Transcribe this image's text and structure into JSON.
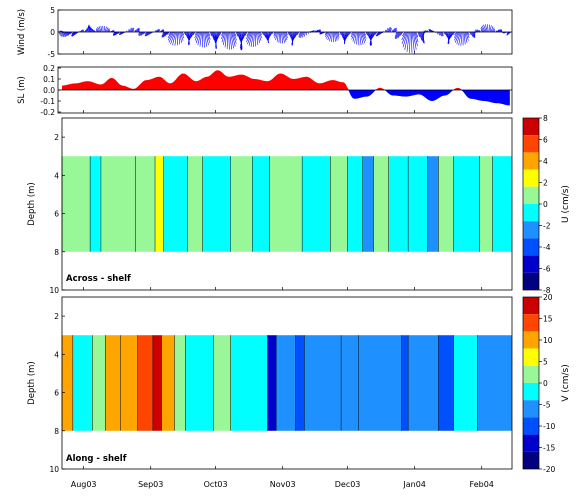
{
  "chart_data": [
    {
      "type": "quiver",
      "ylabel": "Wind (m/s)",
      "ylim": [
        -5,
        5
      ],
      "yticks": [
        "5",
        "0",
        "-5"
      ],
      "x_range": [
        "2003-07-22",
        "2004-02-15"
      ],
      "series": [
        {
          "values": [
            {
              "x": "2003-07-22",
              "u": -2.0,
              "v": 1.2
            },
            {
              "x": "2003-07-27",
              "u": -2.5,
              "v": -2.5
            },
            {
              "x": "2003-08-01",
              "u": 1.5,
              "v": 1.8
            },
            {
              "x": "2003-08-07",
              "u": -2.2,
              "v": 1.5
            },
            {
              "x": "2003-08-13",
              "u": 2.0,
              "v": 1.3
            },
            {
              "x": "2003-08-18",
              "u": -2.8,
              "v": -2.0
            },
            {
              "x": "2003-08-24",
              "u": 2.4,
              "v": 2.5
            },
            {
              "x": "2003-08-30",
              "u": -3.0,
              "v": -2.5
            },
            {
              "x": "2003-09-05",
              "u": 2.2,
              "v": 2.0
            },
            {
              "x": "2003-09-10",
              "u": -3.5,
              "v": -3.0
            },
            {
              "x": "2003-09-16",
              "u": 2.5,
              "v": -3.2
            },
            {
              "x": "2003-09-22",
              "u": -3.0,
              "v": -2.8
            },
            {
              "x": "2003-09-28",
              "u": 2.8,
              "v": -4.2
            },
            {
              "x": "2003-10-04",
              "u": -2.5,
              "v": -3.5
            },
            {
              "x": "2003-10-10",
              "u": 3.0,
              "v": -4.5
            },
            {
              "x": "2003-10-16",
              "u": -3.2,
              "v": -3.8
            },
            {
              "x": "2003-10-22",
              "u": 2.5,
              "v": -3.0
            },
            {
              "x": "2003-10-28",
              "u": -2.0,
              "v": -2.0
            },
            {
              "x": "2003-11-03",
              "u": 2.2,
              "v": -3.2
            },
            {
              "x": "2003-11-09",
              "u": -3.0,
              "v": -3.0
            },
            {
              "x": "2003-11-15",
              "u": 3.0,
              "v": 1.5
            },
            {
              "x": "2003-11-21",
              "u": -2.5,
              "v": -1.5
            },
            {
              "x": "2003-11-27",
              "u": 2.0,
              "v": -3.0
            },
            {
              "x": "2003-12-03",
              "u": -2.5,
              "v": -2.5
            },
            {
              "x": "2003-12-09",
              "u": 2.8,
              "v": -3.5
            },
            {
              "x": "2003-12-15",
              "u": -3.2,
              "v": -2.8
            },
            {
              "x": "2003-12-21",
              "u": 2.5,
              "v": 3.0
            },
            {
              "x": "2003-12-27",
              "u": -3.5,
              "v": -4.0
            },
            {
              "x": "2004-01-02",
              "u": 3.0,
              "v": -5.5
            },
            {
              "x": "2004-01-08",
              "u": -2.8,
              "v": 2.0
            },
            {
              "x": "2004-01-14",
              "u": 2.5,
              "v": -2.5
            },
            {
              "x": "2004-01-20",
              "u": -3.0,
              "v": -3.0
            },
            {
              "x": "2004-01-26",
              "u": 2.2,
              "v": -3.2
            },
            {
              "x": "2004-02-01",
              "u": -2.5,
              "v": 2.0
            },
            {
              "x": "2004-02-07",
              "u": 2.0,
              "v": 1.5
            },
            {
              "x": "2004-02-13",
              "u": -1.5,
              "v": -1.0
            }
          ]
        }
      ]
    },
    {
      "type": "area",
      "ylabel": "SL (m)",
      "ylim": [
        -0.2,
        0.2
      ],
      "yticks": [
        "0.2",
        "0.1",
        "0.0",
        "-0.1",
        "-0.2"
      ],
      "colors": {
        "positive": "#ff0000",
        "negative": "#0000ff"
      },
      "x": [
        "2003-07-22",
        "2003-07-28",
        "2003-08-03",
        "2003-08-09",
        "2003-08-14",
        "2003-08-19",
        "2003-08-24",
        "2003-08-30",
        "2003-09-05",
        "2003-09-10",
        "2003-09-16",
        "2003-09-22",
        "2003-09-27",
        "2003-10-02",
        "2003-10-07",
        "2003-10-13",
        "2003-10-19",
        "2003-10-25",
        "2003-10-31",
        "2003-11-06",
        "2003-11-12",
        "2003-11-18",
        "2003-11-24",
        "2003-11-29",
        "2003-12-04",
        "2003-12-10",
        "2003-12-16",
        "2003-12-22",
        "2003-12-28",
        "2004-01-03",
        "2004-01-09",
        "2004-01-15",
        "2004-01-21",
        "2004-01-27",
        "2004-02-02",
        "2004-02-08",
        "2004-02-14"
      ],
      "values": [
        0.04,
        0.06,
        0.08,
        0.05,
        0.11,
        0.04,
        0.01,
        0.09,
        0.12,
        0.06,
        0.15,
        0.08,
        0.12,
        0.18,
        0.12,
        0.14,
        0.1,
        0.08,
        0.15,
        0.1,
        0.12,
        0.06,
        0.09,
        0.07,
        -0.08,
        -0.06,
        0.02,
        -0.05,
        -0.06,
        -0.04,
        -0.1,
        -0.05,
        0.02,
        -0.08,
        -0.1,
        -0.12,
        -0.14
      ]
    },
    {
      "type": "heatmap",
      "ylabel": "Depth (m)",
      "ylim": [
        10,
        1
      ],
      "yticks": [
        "2",
        "4",
        "6",
        "8",
        "10"
      ],
      "annotation": "Across - shelf",
      "colorbar": {
        "label": "U (cm/s)",
        "ticks": [
          "8",
          "6",
          "4",
          "2",
          "0",
          "-2",
          "-4",
          "-6",
          "-8"
        ],
        "range": [
          -8,
          8
        ],
        "colors": [
          "#000080",
          "#0000cd",
          "#0050ff",
          "#1e90ff",
          "#00ffff",
          "#98f898",
          "#ffff00",
          "#ffa500",
          "#ff4500",
          "#cc0000"
        ]
      },
      "depth_range": [
        3,
        8
      ],
      "bands": [
        {
          "start": "2003-07-22",
          "end": "2003-08-04",
          "value": 1.0
        },
        {
          "start": "2003-08-04",
          "end": "2003-08-09",
          "value": -0.8
        },
        {
          "start": "2003-08-09",
          "end": "2003-08-25",
          "value": 0.8
        },
        {
          "start": "2003-08-25",
          "end": "2003-09-03",
          "value": 1.2
        },
        {
          "start": "2003-09-03",
          "end": "2003-09-07",
          "value": 2.5
        },
        {
          "start": "2003-09-07",
          "end": "2003-09-18",
          "value": -0.6
        },
        {
          "start": "2003-09-18",
          "end": "2003-09-25",
          "value": 0.6
        },
        {
          "start": "2003-09-25",
          "end": "2003-10-08",
          "value": -0.8
        },
        {
          "start": "2003-10-08",
          "end": "2003-10-18",
          "value": 0.7
        },
        {
          "start": "2003-10-18",
          "end": "2003-10-26",
          "value": -0.6
        },
        {
          "start": "2003-10-26",
          "end": "2003-11-10",
          "value": 0.5
        },
        {
          "start": "2003-11-10",
          "end": "2003-11-23",
          "value": -0.8
        },
        {
          "start": "2003-11-23",
          "end": "2003-12-01",
          "value": 0.6
        },
        {
          "start": "2003-12-01",
          "end": "2003-12-08",
          "value": -0.6
        },
        {
          "start": "2003-12-08",
          "end": "2003-12-13",
          "value": -2.2
        },
        {
          "start": "2003-12-13",
          "end": "2003-12-20",
          "value": 0.8
        },
        {
          "start": "2003-12-20",
          "end": "2003-12-29",
          "value": -0.7
        },
        {
          "start": "2003-12-29",
          "end": "2004-01-07",
          "value": -0.5
        },
        {
          "start": "2004-01-07",
          "end": "2004-01-12",
          "value": -2.3
        },
        {
          "start": "2004-01-12",
          "end": "2004-01-19",
          "value": 0.9
        },
        {
          "start": "2004-01-19",
          "end": "2004-01-31",
          "value": -0.6
        },
        {
          "start": "2004-01-31",
          "end": "2004-02-06",
          "value": 0.7
        },
        {
          "start": "2004-02-06",
          "end": "2004-02-15",
          "value": -0.5
        }
      ]
    },
    {
      "type": "heatmap",
      "ylabel": "Depth (m)",
      "ylim": [
        10,
        1
      ],
      "yticks": [
        "2",
        "4",
        "6",
        "8",
        "10"
      ],
      "annotation": "Along - shelf",
      "colorbar": {
        "label": "V (cm/s)",
        "ticks": [
          "20",
          "15",
          "10",
          "5",
          "0",
          "-5",
          "-10",
          "-15",
          "-20"
        ],
        "range": [
          -20,
          20
        ],
        "colors": [
          "#000080",
          "#0000cd",
          "#0050ff",
          "#1e90ff",
          "#00ffff",
          "#98f898",
          "#ffff00",
          "#ffa500",
          "#ff4500",
          "#cc0000"
        ]
      },
      "depth_range": [
        3,
        8
      ],
      "bands": [
        {
          "start": "2003-07-22",
          "end": "2003-07-27",
          "value": 9
        },
        {
          "start": "2003-07-27",
          "end": "2003-08-05",
          "value": -4
        },
        {
          "start": "2003-08-05",
          "end": "2003-08-11",
          "value": 2
        },
        {
          "start": "2003-08-11",
          "end": "2003-08-18",
          "value": 9
        },
        {
          "start": "2003-08-18",
          "end": "2003-08-26",
          "value": 11
        },
        {
          "start": "2003-08-26",
          "end": "2003-09-02",
          "value": 14
        },
        {
          "start": "2003-09-02",
          "end": "2003-09-06",
          "value": 17
        },
        {
          "start": "2003-09-06",
          "end": "2003-09-12",
          "value": 9
        },
        {
          "start": "2003-09-12",
          "end": "2003-09-17",
          "value": 2
        },
        {
          "start": "2003-09-17",
          "end": "2003-09-30",
          "value": -4
        },
        {
          "start": "2003-09-30",
          "end": "2003-10-08",
          "value": 3
        },
        {
          "start": "2003-10-08",
          "end": "2003-10-25",
          "value": -4
        },
        {
          "start": "2003-10-25",
          "end": "2003-10-29",
          "value": -16
        },
        {
          "start": "2003-10-29",
          "end": "2003-11-07",
          "value": -6
        },
        {
          "start": "2003-11-07",
          "end": "2003-11-11",
          "value": -9
        },
        {
          "start": "2003-11-11",
          "end": "2003-11-28",
          "value": -6
        },
        {
          "start": "2003-11-28",
          "end": "2003-12-06",
          "value": -7
        },
        {
          "start": "2003-12-06",
          "end": "2003-12-26",
          "value": -6
        },
        {
          "start": "2003-12-26",
          "end": "2003-12-29",
          "value": -11
        },
        {
          "start": "2003-12-29",
          "end": "2004-01-12",
          "value": -7
        },
        {
          "start": "2004-01-12",
          "end": "2004-01-19",
          "value": -10
        },
        {
          "start": "2004-01-19",
          "end": "2004-01-30",
          "value": -4
        },
        {
          "start": "2004-01-30",
          "end": "2004-02-15",
          "value": -8
        }
      ]
    }
  ],
  "x_axis": {
    "tick_labels": [
      "Aug03",
      "Sep03",
      "Oct03",
      "Nov03",
      "Dec03",
      "Jan04",
      "Feb04"
    ],
    "tick_dates": [
      "2003-08-01",
      "2003-09-01",
      "2003-10-01",
      "2003-11-01",
      "2003-12-01",
      "2004-01-01",
      "2004-02-01"
    ]
  }
}
